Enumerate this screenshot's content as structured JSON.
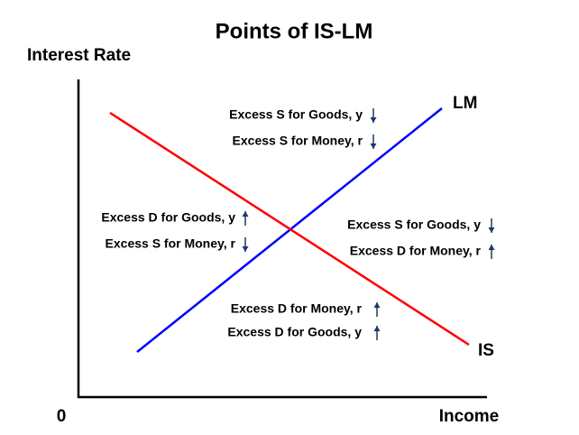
{
  "title": "Points of IS-LM",
  "axes": {
    "y_label": "Interest Rate",
    "x_label": "Income",
    "origin": "0"
  },
  "curves": [
    {
      "label": "LM",
      "color": "#0000ff"
    },
    {
      "label": "IS",
      "color": "#ff0000"
    }
  ],
  "regions": [
    {
      "lines": [
        {
          "text": "Excess S for Goods, y",
          "arrow": "down"
        },
        {
          "text": "Excess S for Money, r",
          "arrow": "down"
        }
      ]
    },
    {
      "lines": [
        {
          "text": "Excess D for Goods, y",
          "arrow": "up"
        },
        {
          "text": "Excess S for Money, r",
          "arrow": "down"
        }
      ]
    },
    {
      "lines": [
        {
          "text": "Excess S for Goods, y",
          "arrow": "down"
        },
        {
          "text": "Excess D for Money, r",
          "arrow": "up"
        }
      ]
    },
    {
      "lines": [
        {
          "text": "Excess D for Money, r",
          "arrow": "up"
        },
        {
          "text": "Excess D for Goods, y",
          "arrow": "up"
        }
      ]
    }
  ]
}
